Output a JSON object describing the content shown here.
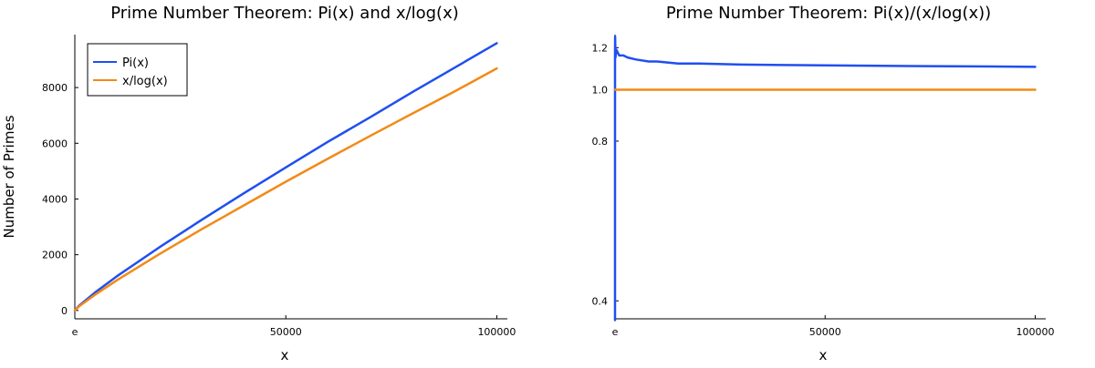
{
  "colors": {
    "series1": "#1f4ff0",
    "series2": "#f28a17",
    "axis": "#000000"
  },
  "chart_data": [
    {
      "type": "line",
      "title": "Prime Number Theorem: Pi(x) and x/log(x)",
      "xlabel": "x",
      "ylabel": "Number of Primes",
      "xlim": [
        0,
        102500
      ],
      "ylim": [
        -300,
        9900
      ],
      "xticks": [
        {
          "value": 2.718,
          "label": "e"
        },
        {
          "value": 50000,
          "label": "50000"
        },
        {
          "value": 100000,
          "label": "100000"
        }
      ],
      "yticks": [
        {
          "value": 0,
          "label": "0"
        },
        {
          "value": 2000,
          "label": "2000"
        },
        {
          "value": 4000,
          "label": "4000"
        },
        {
          "value": 6000,
          "label": "6000"
        },
        {
          "value": 8000,
          "label": "8000"
        }
      ],
      "grid": false,
      "legend": {
        "placement": "top-left"
      },
      "series": [
        {
          "name": "Pi(x)",
          "color": "#1f4ff0",
          "x": [
            2.718,
            1000,
            5000,
            10000,
            20000,
            30000,
            40000,
            50000,
            60000,
            70000,
            80000,
            90000,
            100000
          ],
          "values": [
            1,
            168,
            669,
            1229,
            2262,
            3245,
            4203,
            5133,
            6057,
            6935,
            7837,
            8713,
            9592
          ]
        },
        {
          "name": "x/log(x)",
          "color": "#f28a17",
          "x": [
            2.718,
            1000,
            5000,
            10000,
            20000,
            30000,
            40000,
            50000,
            60000,
            70000,
            80000,
            90000,
            100000
          ],
          "values": [
            2.7,
            145,
            587,
            1086,
            2019,
            2910,
            3767,
            4621,
            5452,
            6264,
            7069,
            7860,
            8686
          ]
        }
      ]
    },
    {
      "type": "line",
      "title": "Prime Number Theorem: Pi(x)/(x/log(x))",
      "xlabel": "x",
      "ylabel": "",
      "xlim": [
        0,
        102500
      ],
      "ylim": [
        0.37,
        1.27
      ],
      "yscale": "log",
      "xticks": [
        {
          "value": 2.718,
          "label": "e"
        },
        {
          "value": 50000,
          "label": "50000"
        },
        {
          "value": 100000,
          "label": "100000"
        }
      ],
      "yticks": [
        {
          "value": 0.4,
          "label": "0.4"
        },
        {
          "value": 0.8,
          "label": "0.8"
        },
        {
          "value": 1.0,
          "label": "1.0"
        },
        {
          "value": 1.2,
          "label": "1.2"
        }
      ],
      "grid": false,
      "series": [
        {
          "color": "#1f4ff0",
          "x": [
            2.718,
            10,
            30,
            100,
            300,
            1000,
            2000,
            3000,
            5000,
            8000,
            10000,
            15000,
            20000,
            30000,
            40000,
            50000,
            60000,
            70000,
            80000,
            90000,
            100000
          ],
          "values": [
            0.368,
            1.15,
            1.26,
            1.15,
            1.19,
            1.16,
            1.16,
            1.15,
            1.14,
            1.13,
            1.13,
            1.12,
            1.12,
            1.115,
            1.113,
            1.111,
            1.11,
            1.108,
            1.107,
            1.106,
            1.104
          ]
        },
        {
          "color": "#f28a17",
          "x": [
            2.718,
            100000
          ],
          "values": [
            1.0,
            1.0
          ]
        }
      ]
    }
  ]
}
